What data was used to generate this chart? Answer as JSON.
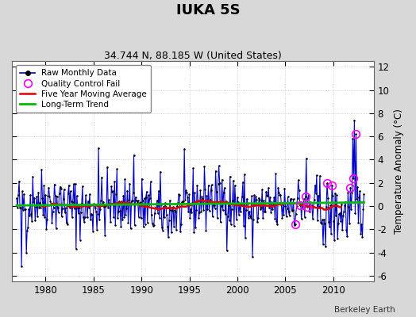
{
  "title": "IUKA 5S",
  "subtitle": "34.744 N, 88.185 W (United States)",
  "ylabel": "Temperature Anomaly (°C)",
  "credit": "Berkeley Earth",
  "ylim": [
    -6.5,
    12.5
  ],
  "yticks": [
    -6,
    -4,
    -2,
    0,
    2,
    4,
    6,
    8,
    10,
    12
  ],
  "xlim": [
    1976.5,
    2014.2
  ],
  "xticks": [
    1980,
    1985,
    1990,
    1995,
    2000,
    2005,
    2010
  ],
  "bg_color": "#d8d8d8",
  "plot_bg_color": "#ffffff",
  "line_color": "#0000cc",
  "trend_color": "#00bb00",
  "ma_color": "#dd0000",
  "qc_color": "#ff00ff",
  "seed": 42
}
